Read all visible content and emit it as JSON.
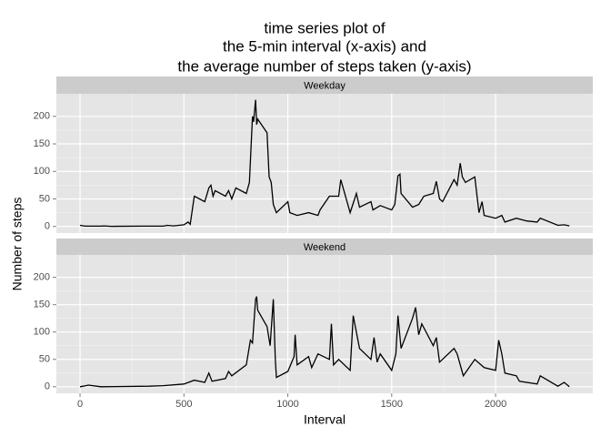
{
  "chart_data": {
    "type": "line",
    "title": [
      "time series plot of",
      "the 5-min interval (x-axis) and",
      "the average number of steps taken (y-axis)"
    ],
    "x_label": "Interval",
    "y_label": "Number of steps",
    "xlim": [
      -114,
      2468
    ],
    "xticks": [
      0,
      500,
      1000,
      1500,
      2000
    ],
    "ylim": [
      -12,
      241
    ],
    "yticks": [
      0,
      50,
      100,
      150,
      200
    ],
    "grid": true,
    "color": "#000000",
    "panels": [
      {
        "name": "Weekday",
        "x": [
          0,
          25,
          100,
          115,
          150,
          300,
          400,
          420,
          450,
          500,
          520,
          530,
          550,
          600,
          620,
          630,
          640,
          650,
          700,
          715,
          730,
          750,
          800,
          815,
          830,
          835,
          845,
          850,
          855,
          900,
          910,
          920,
          930,
          945,
          1000,
          1010,
          1045,
          1100,
          1145,
          1155,
          1200,
          1245,
          1255,
          1300,
          1330,
          1345,
          1400,
          1410,
          1445,
          1500,
          1515,
          1530,
          1540,
          1545,
          1600,
          1630,
          1655,
          1700,
          1715,
          1730,
          1745,
          1800,
          1815,
          1830,
          1840,
          1855,
          1900,
          1920,
          1935,
          1945,
          2000,
          2030,
          2045,
          2100,
          2150,
          2200,
          2215,
          2300,
          2330,
          2355
        ],
        "values": [
          2,
          0.5,
          0.5,
          1,
          0.3,
          0.5,
          0.5,
          2,
          1,
          3,
          8,
          4,
          55,
          45,
          70,
          75,
          55,
          65,
          55,
          65,
          50,
          70,
          60,
          80,
          200,
          190,
          230,
          185,
          195,
          170,
          90,
          80,
          40,
          25,
          45,
          25,
          20,
          25,
          20,
          30,
          55,
          55,
          85,
          25,
          60,
          35,
          45,
          30,
          38,
          30,
          40,
          92,
          95,
          60,
          35,
          40,
          55,
          60,
          82,
          50,
          45,
          85,
          75,
          115,
          90,
          80,
          90,
          25,
          45,
          20,
          15,
          20,
          8,
          15,
          10,
          8,
          15,
          2,
          3,
          1
        ]
      },
      {
        "name": "Weekend",
        "x": [
          0,
          15,
          40,
          100,
          330,
          400,
          500,
          550,
          600,
          620,
          635,
          700,
          715,
          730,
          800,
          820,
          830,
          845,
          850,
          855,
          900,
          915,
          930,
          940,
          945,
          1000,
          1030,
          1035,
          1045,
          1100,
          1115,
          1145,
          1200,
          1210,
          1220,
          1245,
          1300,
          1315,
          1345,
          1400,
          1415,
          1430,
          1445,
          1500,
          1520,
          1530,
          1545,
          1600,
          1615,
          1630,
          1645,
          1700,
          1715,
          1730,
          1800,
          1815,
          1830,
          1845,
          1900,
          1945,
          2000,
          2015,
          2030,
          2045,
          2100,
          2115,
          2200,
          2215,
          2300,
          2330,
          2355
        ],
        "values": [
          0,
          1,
          3,
          0,
          1,
          2,
          5,
          12,
          8,
          25,
          10,
          15,
          28,
          20,
          40,
          85,
          80,
          160,
          165,
          140,
          110,
          75,
          160,
          50,
          17,
          28,
          55,
          95,
          40,
          55,
          35,
          60,
          50,
          115,
          40,
          50,
          30,
          130,
          70,
          50,
          90,
          45,
          60,
          30,
          60,
          130,
          70,
          125,
          145,
          95,
          115,
          75,
          90,
          45,
          70,
          60,
          40,
          20,
          50,
          35,
          30,
          85,
          60,
          25,
          20,
          10,
          5,
          20,
          1,
          8,
          0
        ]
      }
    ]
  }
}
